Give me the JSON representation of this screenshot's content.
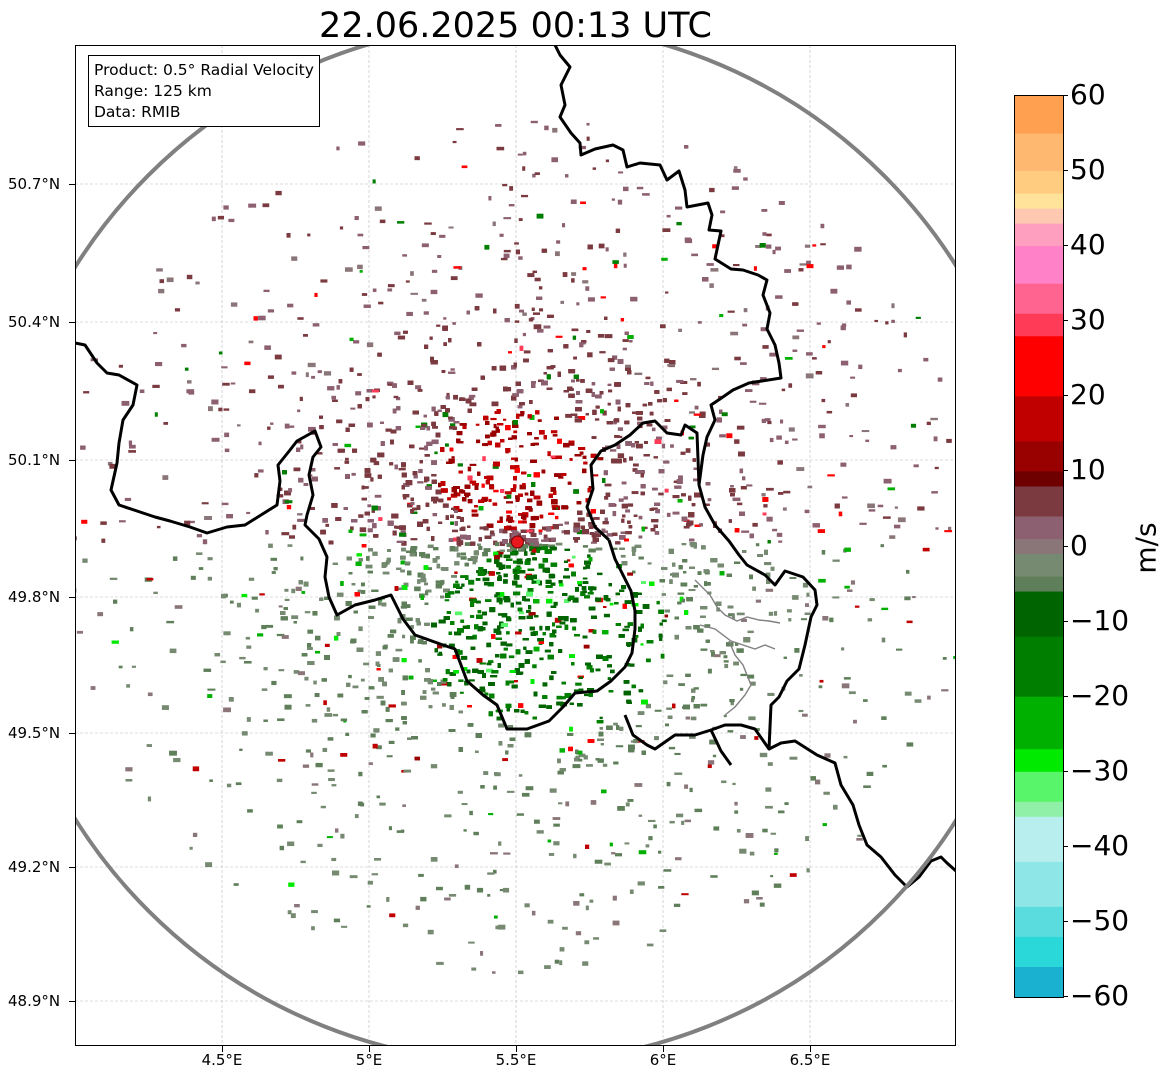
{
  "title": "22.06.2025 00:13 UTC",
  "info": {
    "product": "Product: 0.5° Radial Velocity",
    "range": "Range: 125 km",
    "data": "Data: RMIB"
  },
  "axes": {
    "lat_ticks": [
      "50.7°N",
      "50.4°N",
      "50.1°N",
      "49.8°N",
      "49.5°N",
      "49.2°N",
      "48.9°N"
    ],
    "lon_ticks": [
      "4.5°E",
      "5°E",
      "5.5°E",
      "6°E",
      "6.5°E"
    ],
    "lat_range": [
      48.8,
      51.0
    ],
    "lon_range": [
      4.0,
      7.0
    ]
  },
  "radar": {
    "site_lon": 5.505,
    "site_lat": 49.914,
    "site_color": "#e8171e",
    "range_ring_color": "#808080"
  },
  "colorbar": {
    "unit": "m/s",
    "ticks": [
      "60",
      "50",
      "40",
      "30",
      "20",
      "10",
      "0",
      "−10",
      "−20",
      "−30",
      "−40",
      "−50",
      "−60"
    ],
    "min": -60,
    "max": 60,
    "stops": [
      {
        "v": 60,
        "c": "#ffa050"
      },
      {
        "v": 55,
        "c": "#ffb870"
      },
      {
        "v": 50,
        "c": "#ffcc80"
      },
      {
        "v": 47,
        "c": "#ffe39a"
      },
      {
        "v": 45,
        "c": "#ffc8b0"
      },
      {
        "v": 43,
        "c": "#ff9fc0"
      },
      {
        "v": 40,
        "c": "#ff82c8"
      },
      {
        "v": 35,
        "c": "#ff6490"
      },
      {
        "v": 31,
        "c": "#ff3b58"
      },
      {
        "v": 28,
        "c": "#ff0000"
      },
      {
        "v": 20,
        "c": "#c00000"
      },
      {
        "v": 14,
        "c": "#990000"
      },
      {
        "v": 10,
        "c": "#6e0000"
      },
      {
        "v": 8,
        "c": "#7a3a40"
      },
      {
        "v": 4,
        "c": "#8c6070"
      },
      {
        "v": 1,
        "c": "#8a7578"
      },
      {
        "v": -1,
        "c": "#768a72"
      },
      {
        "v": -4,
        "c": "#5f7f5a"
      },
      {
        "v": -6,
        "c": "#006400"
      },
      {
        "v": -12,
        "c": "#007e00"
      },
      {
        "v": -20,
        "c": "#00b000"
      },
      {
        "v": -27,
        "c": "#00ea00"
      },
      {
        "v": -30,
        "c": "#58f46a"
      },
      {
        "v": -34,
        "c": "#90f0a8"
      },
      {
        "v": -36,
        "c": "#b8eeee"
      },
      {
        "v": -42,
        "c": "#8ee6e6"
      },
      {
        "v": -48,
        "c": "#5adcde"
      },
      {
        "v": -52,
        "c": "#2ad8da"
      },
      {
        "v": -56,
        "c": "#1ab0d0"
      },
      {
        "v": -60,
        "c": "#1f77b4"
      }
    ]
  }
}
